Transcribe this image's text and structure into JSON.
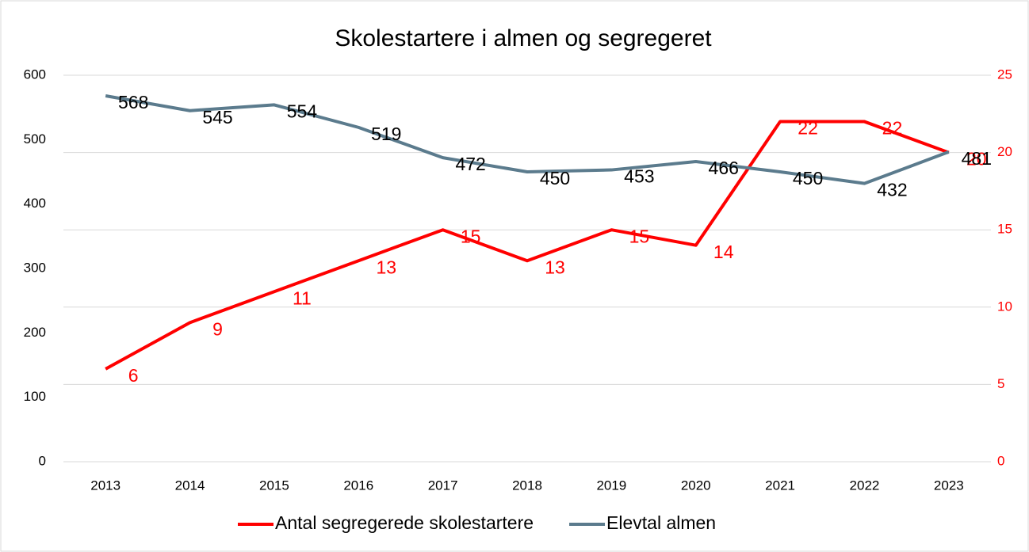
{
  "chart_data": {
    "type": "line",
    "title": "Skolestartere i almen og segregeret",
    "categories": [
      "2013",
      "2014",
      "2015",
      "2016",
      "2017",
      "2018",
      "2019",
      "2020",
      "2021",
      "2022",
      "2023"
    ],
    "series": [
      {
        "name": "Antal segregerede skolestartere",
        "color": "#ff0000",
        "axis": "y2",
        "values": [
          6,
          9,
          11,
          13,
          15,
          13,
          15,
          14,
          22,
          22,
          20
        ]
      },
      {
        "name": "Elevtal almen",
        "color": "#5b7b8d",
        "values": [
          568,
          545,
          554,
          519,
          472,
          450,
          453,
          466,
          450,
          432,
          481
        ]
      }
    ],
    "ylim": [
      0,
      600
    ],
    "yticks": [
      0,
      100,
      200,
      300,
      400,
      500,
      600
    ],
    "y2lim": [
      0,
      25
    ],
    "y2ticks": [
      0,
      5,
      10,
      15,
      20,
      25
    ],
    "grid": true
  }
}
